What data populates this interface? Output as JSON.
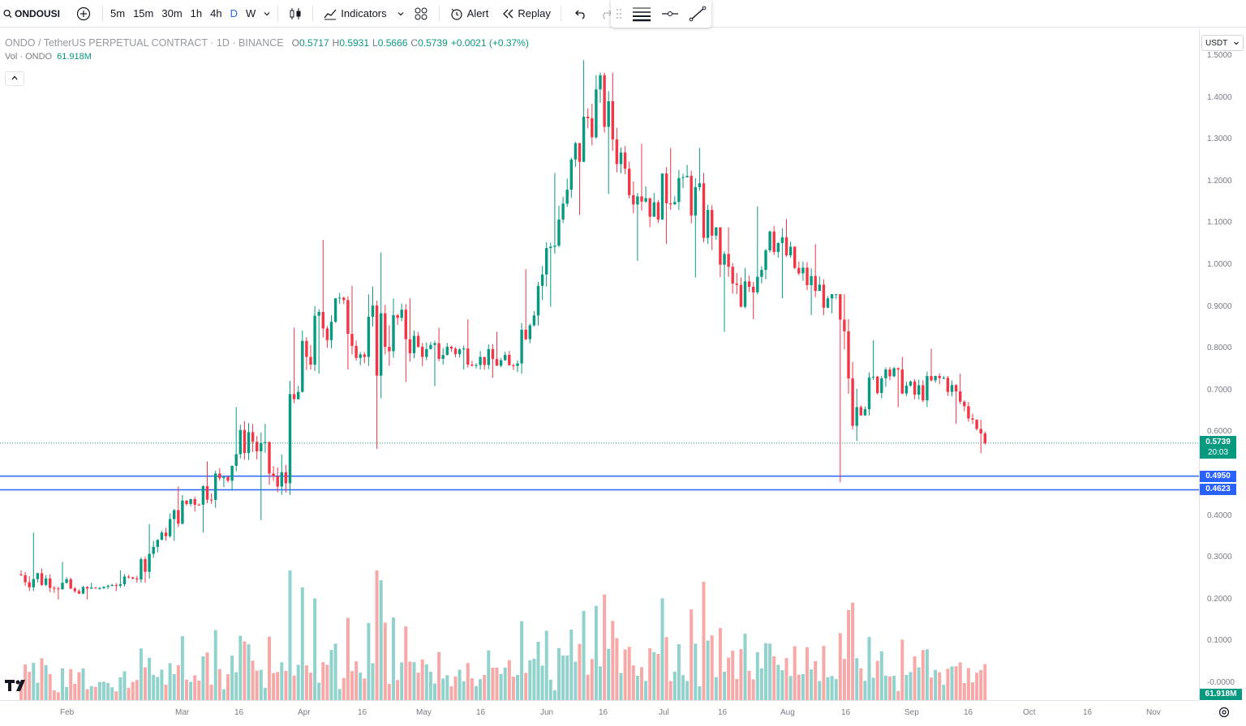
{
  "toolbar": {
    "symbol": "ONDOUSI",
    "intervals": [
      "5m",
      "15m",
      "30m",
      "1h",
      "4h",
      "D",
      "W"
    ],
    "active_interval": "D",
    "indicators_label": "Indicators",
    "alert_label": "Alert",
    "replay_label": "Replay"
  },
  "legend": {
    "title": "ONDO / TetherUS PERPETUAL CONTRACT · 1D · BINANCE",
    "o_label": "O",
    "o": "0.5717",
    "h_label": "H",
    "h": "0.5931",
    "l_label": "L",
    "l": "0.5666",
    "c_label": "C",
    "c": "0.5739",
    "change": "+0.0021 (+0.37%)",
    "vol_label": "Vol · ONDO",
    "vol_value": "61.918M",
    "collapse_icon": "chevron-up-icon"
  },
  "price_axis": {
    "currency": "USDT",
    "ticks": [
      "1.5000",
      "1.4000",
      "1.3000",
      "1.2000",
      "1.1000",
      "1.0000",
      "0.9000",
      "0.8000",
      "0.7000",
      "0.6000",
      "0.4000",
      "0.3000",
      "0.2000",
      "0.1000",
      "-0.0000"
    ],
    "last_price": "0.5739",
    "countdown": "20:03",
    "line_1": "0.4950",
    "line_2": "0.4623",
    "volume_tag": "61.918M"
  },
  "time_axis": {
    "labels": [
      "Feb",
      "Mar",
      "16",
      "Apr",
      "16",
      "May",
      "16",
      "Jun",
      "16",
      "Jul",
      "16",
      "Aug",
      "16",
      "Sep",
      "16",
      "Oct",
      "16",
      "Nov"
    ]
  },
  "colors": {
    "up": "#089981",
    "down": "#f23645",
    "up_volume": "#92d2cc",
    "down_volume": "#f7a9a7",
    "horizontal_line": "#2962ff",
    "accent": "#2962ff"
  },
  "chart_data": {
    "type": "candlestick",
    "symbol": "ONDOUSDT.P",
    "interval": "1D",
    "ylim": [
      -0.0,
      1.5
    ],
    "horizontal_levels": [
      0.495,
      0.4623
    ],
    "last_price": 0.5739,
    "ohlc_weekly_approx": [
      {
        "x": "Jan 18",
        "o": 0.26,
        "h": 0.36,
        "l": 0.22,
        "c": 0.25
      },
      {
        "x": "Jan 25",
        "o": 0.25,
        "h": 0.29,
        "l": 0.2,
        "c": 0.22
      },
      {
        "x": "Feb 01",
        "o": 0.22,
        "h": 0.24,
        "l": 0.2,
        "c": 0.23
      },
      {
        "x": "Feb 08",
        "o": 0.23,
        "h": 0.27,
        "l": 0.22,
        "c": 0.25
      },
      {
        "x": "Feb 15",
        "o": 0.25,
        "h": 0.38,
        "l": 0.24,
        "c": 0.36
      },
      {
        "x": "Feb 22",
        "o": 0.36,
        "h": 0.47,
        "l": 0.34,
        "c": 0.44
      },
      {
        "x": "Mar 01",
        "o": 0.44,
        "h": 0.53,
        "l": 0.36,
        "c": 0.49
      },
      {
        "x": "Mar 08",
        "o": 0.49,
        "h": 0.66,
        "l": 0.46,
        "c": 0.6
      },
      {
        "x": "Mar 15",
        "o": 0.6,
        "h": 0.62,
        "l": 0.39,
        "c": 0.47
      },
      {
        "x": "Mar 22",
        "o": 0.47,
        "h": 0.85,
        "l": 0.45,
        "c": 0.78
      },
      {
        "x": "Mar 29",
        "o": 0.78,
        "h": 1.06,
        "l": 0.74,
        "c": 0.92
      },
      {
        "x": "Apr 05",
        "o": 0.92,
        "h": 0.95,
        "l": 0.75,
        "c": 0.78
      },
      {
        "x": "Apr 12",
        "o": 0.78,
        "h": 1.03,
        "l": 0.56,
        "c": 0.88
      },
      {
        "x": "Apr 19",
        "o": 0.88,
        "h": 0.92,
        "l": 0.72,
        "c": 0.78
      },
      {
        "x": "Apr 26",
        "o": 0.78,
        "h": 0.85,
        "l": 0.71,
        "c": 0.8
      },
      {
        "x": "May 03",
        "o": 0.8,
        "h": 0.87,
        "l": 0.75,
        "c": 0.78
      },
      {
        "x": "May 10",
        "o": 0.78,
        "h": 0.84,
        "l": 0.73,
        "c": 0.76
      },
      {
        "x": "May 17",
        "o": 0.76,
        "h": 0.99,
        "l": 0.74,
        "c": 0.95
      },
      {
        "x": "May 24",
        "o": 0.95,
        "h": 1.22,
        "l": 0.9,
        "c": 1.18
      },
      {
        "x": "May 31",
        "o": 1.18,
        "h": 1.49,
        "l": 1.12,
        "c": 1.42
      },
      {
        "x": "Jun 07",
        "o": 1.42,
        "h": 1.46,
        "l": 1.17,
        "c": 1.23
      },
      {
        "x": "Jun 14",
        "o": 1.23,
        "h": 1.29,
        "l": 1.01,
        "c": 1.15
      },
      {
        "x": "Jun 21",
        "o": 1.15,
        "h": 1.28,
        "l": 1.05,
        "c": 1.21
      },
      {
        "x": "Jun 28",
        "o": 1.21,
        "h": 1.28,
        "l": 0.97,
        "c": 1.07
      },
      {
        "x": "Jul 05",
        "o": 1.07,
        "h": 1.09,
        "l": 0.84,
        "c": 0.9
      },
      {
        "x": "Jul 12",
        "o": 0.9,
        "h": 1.14,
        "l": 0.87,
        "c": 1.08
      },
      {
        "x": "Jul 19",
        "o": 1.08,
        "h": 1.11,
        "l": 0.92,
        "c": 0.98
      },
      {
        "x": "Jul 26",
        "o": 0.98,
        "h": 1.05,
        "l": 0.88,
        "c": 0.92
      },
      {
        "x": "Aug 02",
        "o": 0.92,
        "h": 0.93,
        "l": 0.48,
        "c": 0.66
      },
      {
        "x": "Aug 09",
        "o": 0.66,
        "h": 0.82,
        "l": 0.64,
        "c": 0.75
      },
      {
        "x": "Aug 16",
        "o": 0.75,
        "h": 0.78,
        "l": 0.66,
        "c": 0.69
      },
      {
        "x": "Aug 23",
        "o": 0.69,
        "h": 0.8,
        "l": 0.66,
        "c": 0.73
      },
      {
        "x": "Aug 30",
        "o": 0.73,
        "h": 0.74,
        "l": 0.62,
        "c": 0.63
      },
      {
        "x": "Sep 06",
        "o": 0.63,
        "h": 0.63,
        "l": 0.55,
        "c": 0.5739
      }
    ]
  }
}
